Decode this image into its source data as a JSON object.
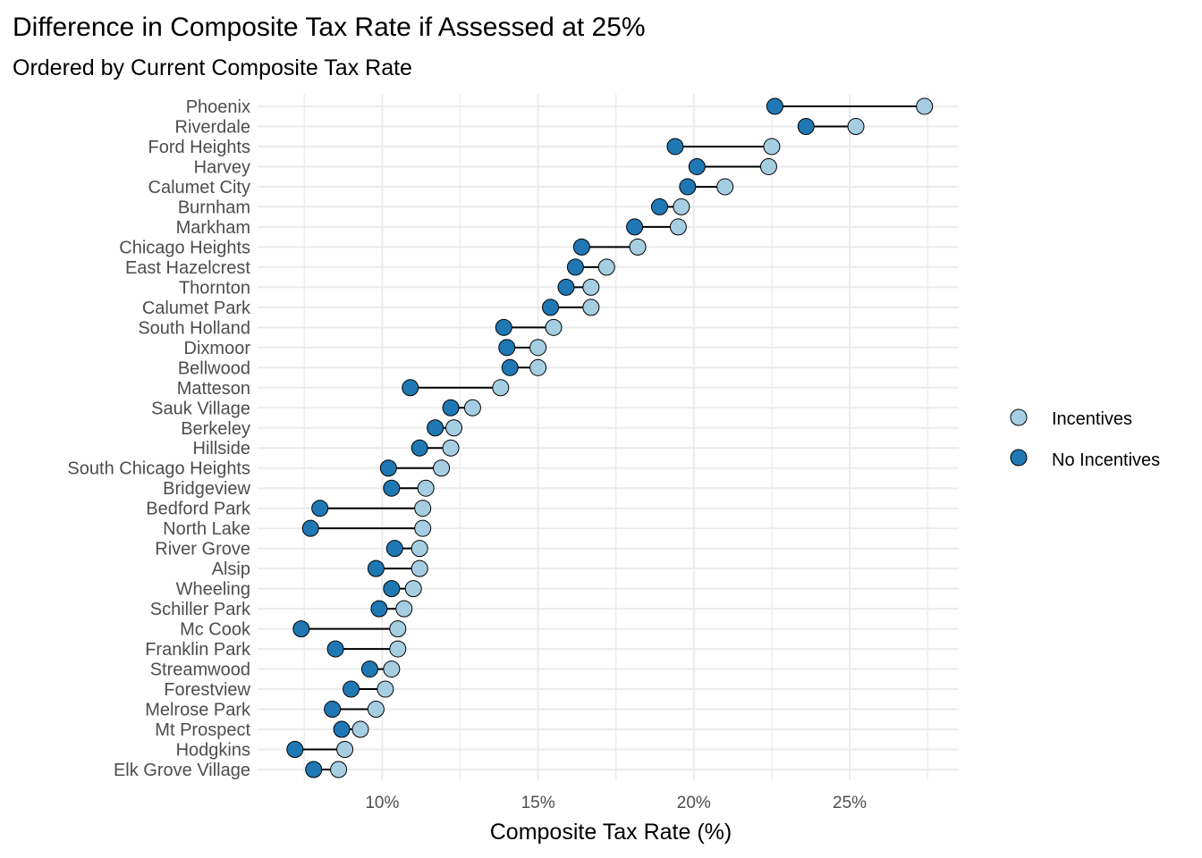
{
  "chart_data": {
    "type": "dumbbell",
    "title": "Difference in Composite Tax Rate if Assessed at 25%",
    "subtitle": "Ordered by Current Composite Tax Rate",
    "xlabel": "Composite Tax Rate (%)",
    "ylabel": "",
    "xlim": [
      6.0,
      28.5
    ],
    "x_ticks": [
      10,
      15,
      20,
      25
    ],
    "x_tick_labels": [
      "10%",
      "15%",
      "20%",
      "25%"
    ],
    "grid": true,
    "legend": {
      "position": "right",
      "entries": [
        {
          "name": "Incentives",
          "color": "#a6cee3"
        },
        {
          "name": "No Incentives",
          "color": "#1f78b4"
        }
      ]
    },
    "categories": [
      "Phoenix",
      "Riverdale",
      "Ford Heights",
      "Harvey",
      "Calumet City",
      "Burnham",
      "Markham",
      "Chicago Heights",
      "East Hazelcrest",
      "Thornton",
      "Calumet Park",
      "South Holland",
      "Dixmoor",
      "Bellwood",
      "Matteson",
      "Sauk Village",
      "Berkeley",
      "Hillside",
      "South Chicago Heights",
      "Bridgeview",
      "Bedford Park",
      "North Lake",
      "River Grove",
      "Alsip",
      "Wheeling",
      "Schiller Park",
      "Mc Cook",
      "Franklin Park",
      "Streamwood",
      "Forestview",
      "Melrose Park",
      "Mt Prospect",
      "Hodgkins",
      "Elk Grove Village"
    ],
    "series": [
      {
        "name": "Incentives",
        "color": "#a6cee3",
        "values": [
          27.4,
          25.2,
          22.5,
          22.4,
          21.0,
          19.6,
          19.5,
          18.2,
          17.2,
          16.7,
          16.7,
          15.5,
          15.0,
          15.0,
          13.8,
          12.9,
          12.3,
          12.2,
          11.9,
          11.4,
          11.3,
          11.3,
          11.2,
          11.2,
          11.0,
          10.7,
          10.5,
          10.5,
          10.3,
          10.1,
          9.8,
          9.3,
          8.8,
          8.6
        ]
      },
      {
        "name": "No Incentives",
        "color": "#1f78b4",
        "values": [
          22.6,
          23.6,
          19.4,
          20.1,
          19.8,
          18.9,
          18.1,
          16.4,
          16.2,
          15.9,
          15.4,
          13.9,
          14.0,
          14.1,
          10.9,
          12.2,
          11.7,
          11.2,
          10.2,
          10.3,
          8.0,
          7.7,
          10.4,
          9.8,
          10.3,
          9.9,
          7.4,
          8.5,
          9.6,
          9.0,
          8.4,
          8.7,
          7.2,
          7.8
        ]
      }
    ]
  }
}
